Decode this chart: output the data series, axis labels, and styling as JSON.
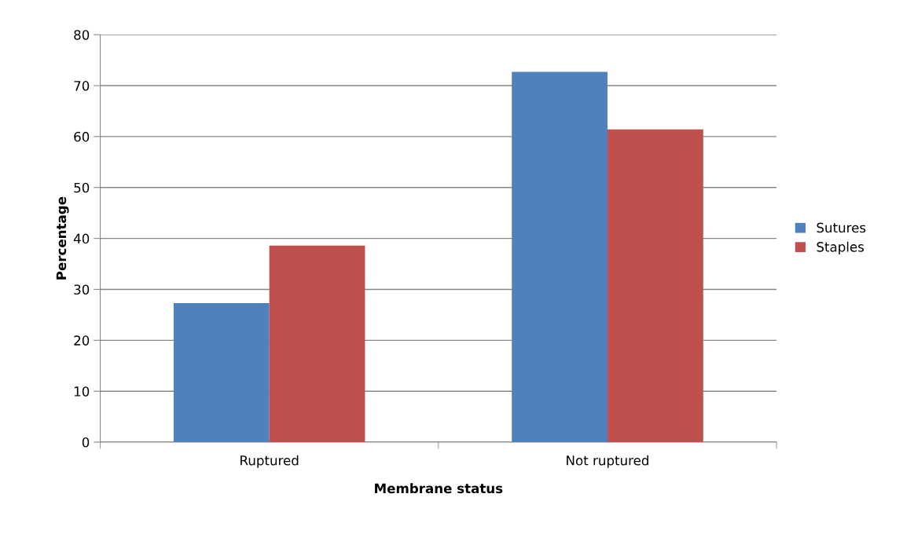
{
  "chart_data": {
    "type": "bar",
    "xlabel": "Membrane status",
    "ylabel": "Percentage",
    "categories": [
      "Ruptured",
      "Not ruptured"
    ],
    "series": [
      {
        "name": "Sutures",
        "color": "#4f81bd",
        "values": [
          27.3,
          72.7
        ]
      },
      {
        "name": "Staples",
        "color": "#c0504d",
        "values": [
          38.6,
          61.4
        ]
      }
    ],
    "ylim": [
      0,
      80
    ],
    "yticks": [
      0,
      10,
      20,
      30,
      40,
      50,
      60,
      70,
      80
    ],
    "grid": "y",
    "legend": "right"
  }
}
